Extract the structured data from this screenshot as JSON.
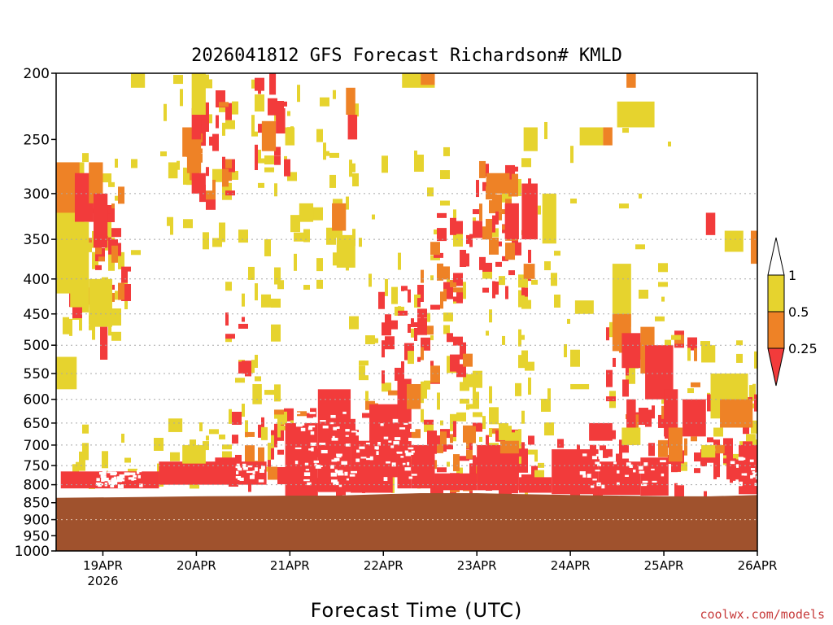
{
  "chart_data": {
    "type": "heatmap",
    "title": "2026041812 GFS Forecast Richardson# KMLD",
    "xlabel": "Forecast Time (UTC)",
    "ylabel": "",
    "credit": "coolwx.com/models",
    "y_scale": "log",
    "y_inverted": true,
    "ylim": [
      1000,
      200
    ],
    "xlim_days": [
      18.5,
      26.0
    ],
    "y_ticks": [
      200,
      250,
      300,
      350,
      400,
      450,
      500,
      550,
      600,
      650,
      700,
      750,
      800,
      850,
      900,
      950,
      1000
    ],
    "y_gridlines": [
      300,
      350,
      400,
      450,
      500,
      550,
      600,
      650,
      700,
      750,
      800,
      900
    ],
    "x_ticks": [
      {
        "day": 19,
        "label": "19APR",
        "sublabel": "2026"
      },
      {
        "day": 20,
        "label": "20APR",
        "sublabel": ""
      },
      {
        "day": 21,
        "label": "21APR",
        "sublabel": ""
      },
      {
        "day": 22,
        "label": "22APR",
        "sublabel": ""
      },
      {
        "day": 23,
        "label": "23APR",
        "sublabel": ""
      },
      {
        "day": 24,
        "label": "24APR",
        "sublabel": ""
      },
      {
        "day": 25,
        "label": "25APR",
        "sublabel": ""
      },
      {
        "day": 26,
        "label": "26APR",
        "sublabel": ""
      }
    ],
    "legend": {
      "placement": "right",
      "labels": [
        "1",
        "0.5",
        "0.25"
      ],
      "bins": [
        {
          "range": "0.5-1",
          "color": "#e6d32e"
        },
        {
          "range": "0.25-0.5",
          "color": "#ee8226"
        },
        {
          "range": "<0.25",
          "color": "#f23b3b"
        }
      ]
    },
    "ground_color": "#a0522d",
    "surface_pressure_hPa": [
      {
        "day": 18.5,
        "p": 836
      },
      {
        "day": 19.4,
        "p": 834
      },
      {
        "day": 20.0,
        "p": 832
      },
      {
        "day": 20.5,
        "p": 831
      },
      {
        "day": 21.0,
        "p": 830
      },
      {
        "day": 21.5,
        "p": 830
      },
      {
        "day": 22.0,
        "p": 826
      },
      {
        "day": 22.4,
        "p": 823
      },
      {
        "day": 23.0,
        "p": 823
      },
      {
        "day": 23.5,
        "p": 826
      },
      {
        "day": 24.0,
        "p": 828
      },
      {
        "day": 24.5,
        "p": 830
      },
      {
        "day": 25.0,
        "p": 832
      },
      {
        "day": 25.5,
        "p": 832
      },
      {
        "day": 26.0,
        "p": 828
      }
    ],
    "regions": [
      {
        "bin": "0.5-1",
        "day0": 18.5,
        "day1": 18.8,
        "p0": 270,
        "p1": 420
      },
      {
        "bin": "0.25-0.5",
        "day0": 18.5,
        "day1": 18.75,
        "p0": 270,
        "p1": 320
      },
      {
        "bin": "<0.25",
        "day0": 18.7,
        "day1": 18.9,
        "p0": 280,
        "p1": 330
      },
      {
        "bin": "0.25-0.5",
        "day0": 18.85,
        "day1": 19.0,
        "p0": 270,
        "p1": 310
      },
      {
        "bin": "<0.25",
        "day0": 18.9,
        "day1": 19.05,
        "p0": 300,
        "p1": 360
      },
      {
        "bin": "0.5-1",
        "day0": 18.65,
        "day1": 18.85,
        "p0": 330,
        "p1": 440
      },
      {
        "bin": "0.5-1",
        "day0": 18.85,
        "day1": 19.1,
        "p0": 400,
        "p1": 470
      },
      {
        "bin": "<0.25",
        "day0": 18.97,
        "day1": 19.05,
        "p0": 470,
        "p1": 525
      },
      {
        "bin": "0.5-1",
        "day0": 18.5,
        "day1": 18.72,
        "p0": 520,
        "p1": 580
      },
      {
        "bin": "0.5-1",
        "day0": 19.3,
        "day1": 19.45,
        "p0": 200,
        "p1": 210
      },
      {
        "bin": "0.5-1",
        "day0": 19.7,
        "day1": 19.8,
        "p0": 270,
        "p1": 285
      },
      {
        "bin": "0.25-0.5",
        "day0": 19.85,
        "day1": 20.0,
        "p0": 240,
        "p1": 265
      },
      {
        "bin": "<0.25",
        "day0": 19.95,
        "day1": 20.05,
        "p0": 225,
        "p1": 250
      },
      {
        "bin": "0.5-1",
        "day0": 19.95,
        "day1": 20.1,
        "p0": 200,
        "p1": 230
      },
      {
        "bin": "0.25-0.5",
        "day0": 19.9,
        "day1": 20.05,
        "p0": 250,
        "p1": 280
      },
      {
        "bin": "<0.25",
        "day0": 19.95,
        "day1": 20.1,
        "p0": 280,
        "p1": 300
      },
      {
        "bin": "0.25-0.5",
        "day0": 20.7,
        "day1": 20.85,
        "p0": 235,
        "p1": 260
      },
      {
        "bin": "<0.25",
        "day0": 20.78,
        "day1": 20.85,
        "p0": 200,
        "p1": 215
      },
      {
        "bin": "<0.25",
        "day0": 20.85,
        "day1": 20.95,
        "p0": 225,
        "p1": 245
      },
      {
        "bin": "0.5-1",
        "day0": 20.95,
        "day1": 21.05,
        "p0": 240,
        "p1": 255
      },
      {
        "bin": "0.5-1",
        "day0": 21.1,
        "day1": 21.25,
        "p0": 310,
        "p1": 330
      },
      {
        "bin": "0.25-0.5",
        "day0": 21.45,
        "day1": 21.6,
        "p0": 310,
        "p1": 340
      },
      {
        "bin": "0.5-1",
        "day0": 21.5,
        "day1": 21.7,
        "p0": 345,
        "p1": 385
      },
      {
        "bin": "0.25-0.5",
        "day0": 21.6,
        "day1": 21.7,
        "p0": 210,
        "p1": 230
      },
      {
        "bin": "<0.25",
        "day0": 21.62,
        "day1": 21.72,
        "p0": 230,
        "p1": 250
      },
      {
        "bin": "0.5-1",
        "day0": 22.2,
        "day1": 22.55,
        "p0": 200,
        "p1": 210
      },
      {
        "bin": "0.25-0.5",
        "day0": 22.4,
        "day1": 22.55,
        "p0": 200,
        "p1": 208
      },
      {
        "bin": "0.25-0.5",
        "day0": 23.1,
        "day1": 23.35,
        "p0": 280,
        "p1": 300
      },
      {
        "bin": "<0.25",
        "day0": 23.3,
        "day1": 23.45,
        "p0": 310,
        "p1": 350
      },
      {
        "bin": "<0.25",
        "day0": 23.48,
        "day1": 23.65,
        "p0": 290,
        "p1": 350
      },
      {
        "bin": "0.5-1",
        "day0": 23.5,
        "day1": 23.65,
        "p0": 240,
        "p1": 260
      },
      {
        "bin": "0.25-0.5",
        "day0": 23.5,
        "day1": 23.62,
        "p0": 380,
        "p1": 400
      },
      {
        "bin": "0.5-1",
        "day0": 23.7,
        "day1": 23.85,
        "p0": 300,
        "p1": 355
      },
      {
        "bin": "0.5-1",
        "day0": 24.1,
        "day1": 24.35,
        "p0": 240,
        "p1": 255
      },
      {
        "bin": "0.25-0.5",
        "day0": 24.35,
        "day1": 24.45,
        "p0": 240,
        "p1": 255
      },
      {
        "bin": "0.5-1",
        "day0": 24.5,
        "day1": 24.9,
        "p0": 220,
        "p1": 240
      },
      {
        "bin": "0.25-0.5",
        "day0": 24.6,
        "day1": 24.7,
        "p0": 200,
        "p1": 210
      },
      {
        "bin": "0.5-1",
        "day0": 24.45,
        "day1": 24.65,
        "p0": 380,
        "p1": 470
      },
      {
        "bin": "0.25-0.5",
        "day0": 24.45,
        "day1": 24.65,
        "p0": 450,
        "p1": 510
      },
      {
        "bin": "<0.25",
        "day0": 24.55,
        "day1": 24.75,
        "p0": 480,
        "p1": 540
      },
      {
        "bin": "<0.25",
        "day0": 24.6,
        "day1": 24.7,
        "p0": 600,
        "p1": 700
      },
      {
        "bin": "0.25-0.5",
        "day0": 24.75,
        "day1": 24.9,
        "p0": 470,
        "p1": 550
      },
      {
        "bin": "<0.25",
        "day0": 24.8,
        "day1": 25.1,
        "p0": 500,
        "p1": 600
      },
      {
        "bin": "<0.25",
        "day0": 25.0,
        "day1": 25.15,
        "p0": 580,
        "p1": 680
      },
      {
        "bin": "0.25-0.5",
        "day0": 25.05,
        "day1": 25.2,
        "p0": 660,
        "p1": 740
      },
      {
        "bin": "<0.25",
        "day0": 25.2,
        "day1": 25.45,
        "p0": 600,
        "p1": 680
      },
      {
        "bin": "0.5-1",
        "day0": 25.4,
        "day1": 25.55,
        "p0": 500,
        "p1": 530
      },
      {
        "bin": "0.5-1",
        "day0": 25.5,
        "day1": 25.9,
        "p0": 550,
        "p1": 640
      },
      {
        "bin": "0.25-0.5",
        "day0": 25.6,
        "day1": 25.95,
        "p0": 600,
        "p1": 660
      },
      {
        "bin": "<0.25",
        "day0": 25.45,
        "day1": 25.55,
        "p0": 320,
        "p1": 345
      },
      {
        "bin": "0.5-1",
        "day0": 25.65,
        "day1": 25.85,
        "p0": 340,
        "p1": 365
      },
      {
        "bin": "0.25-0.5",
        "day0": 25.93,
        "day1": 26.0,
        "p0": 340,
        "p1": 380
      },
      {
        "bin": "<0.25",
        "day0": 24.2,
        "day1": 24.45,
        "p0": 650,
        "p1": 690
      },
      {
        "bin": "0.5-1",
        "day0": 24.0,
        "day1": 24.2,
        "p0": 570,
        "p1": 580
      },
      {
        "bin": "0.5-1",
        "day0": 24.05,
        "day1": 24.25,
        "p0": 430,
        "p1": 450
      },
      {
        "bin": "<0.25",
        "day0": 18.55,
        "day1": 19.6,
        "p0": 765,
        "p1": 810
      },
      {
        "bin": "0.5-1",
        "day0": 19.7,
        "day1": 19.85,
        "p0": 640,
        "p1": 670
      },
      {
        "bin": "<0.25",
        "day0": 19.6,
        "day1": 20.75,
        "p0": 740,
        "p1": 800
      },
      {
        "bin": "0.5-1",
        "day0": 19.85,
        "day1": 20.1,
        "p0": 700,
        "p1": 745
      },
      {
        "bin": "<0.25",
        "day0": 20.2,
        "day1": 20.45,
        "p0": 730,
        "p1": 760
      },
      {
        "bin": "0.5-1",
        "day0": 20.6,
        "day1": 20.7,
        "p0": 570,
        "p1": 610
      },
      {
        "bin": "<0.25",
        "day0": 20.95,
        "day1": 21.3,
        "p0": 650,
        "p1": 830
      },
      {
        "bin": "<0.25",
        "day0": 21.3,
        "day1": 21.65,
        "p0": 580,
        "p1": 820
      },
      {
        "bin": "<0.25",
        "day0": 21.65,
        "day1": 22.1,
        "p0": 690,
        "p1": 822
      },
      {
        "bin": "<0.25",
        "day0": 21.85,
        "day1": 22.15,
        "p0": 610,
        "p1": 780
      },
      {
        "bin": "<0.25",
        "day0": 22.15,
        "day1": 22.3,
        "p0": 560,
        "p1": 810
      },
      {
        "bin": "0.25-0.5",
        "day0": 22.25,
        "day1": 22.4,
        "p0": 570,
        "p1": 620
      },
      {
        "bin": "<0.25",
        "day0": 22.3,
        "day1": 22.55,
        "p0": 700,
        "p1": 810
      },
      {
        "bin": "<0.25",
        "day0": 22.55,
        "day1": 23.0,
        "p0": 770,
        "p1": 815
      },
      {
        "bin": "<0.25",
        "day0": 23.0,
        "day1": 23.45,
        "p0": 700,
        "p1": 815
      },
      {
        "bin": "0.25-0.5",
        "day0": 23.25,
        "day1": 23.45,
        "p0": 690,
        "p1": 720
      },
      {
        "bin": "<0.25",
        "day0": 23.45,
        "day1": 23.8,
        "p0": 780,
        "p1": 822
      },
      {
        "bin": "<0.25",
        "day0": 23.8,
        "day1": 24.3,
        "p0": 710,
        "p1": 826
      },
      {
        "bin": "<0.25",
        "day0": 24.3,
        "day1": 24.75,
        "p0": 740,
        "p1": 828
      },
      {
        "bin": "<0.25",
        "day0": 24.75,
        "day1": 25.05,
        "p0": 730,
        "p1": 830
      },
      {
        "bin": "0.5-1",
        "day0": 24.55,
        "day1": 24.75,
        "p0": 660,
        "p1": 700
      },
      {
        "bin": "<0.25",
        "day0": 25.8,
        "day1": 26.0,
        "p0": 700,
        "p1": 826
      },
      {
        "bin": "0.5-1",
        "day0": 25.4,
        "day1": 25.55,
        "p0": 700,
        "p1": 730
      },
      {
        "bin": "0.25-0.5",
        "day0": 25.55,
        "day1": 25.65,
        "p0": 700,
        "p1": 720
      }
    ],
    "noise_clusters": [
      {
        "bin": "0.5-1",
        "day0": 18.5,
        "day1": 19.3,
        "p0": 260,
        "p1": 480,
        "n": 60
      },
      {
        "bin": "<0.25",
        "day0": 18.6,
        "day1": 19.2,
        "p0": 280,
        "p1": 440,
        "n": 30
      },
      {
        "bin": "0.25-0.5",
        "day0": 18.6,
        "day1": 19.2,
        "p0": 280,
        "p1": 440,
        "n": 18
      },
      {
        "bin": "0.5-1",
        "day0": 19.6,
        "day1": 20.4,
        "p0": 200,
        "p1": 360,
        "n": 28
      },
      {
        "bin": "<0.25",
        "day0": 19.9,
        "day1": 20.3,
        "p0": 210,
        "p1": 300,
        "n": 18
      },
      {
        "bin": "0.25-0.5",
        "day0": 19.85,
        "day1": 20.3,
        "p0": 210,
        "p1": 300,
        "n": 14
      },
      {
        "bin": "0.5-1",
        "day0": 20.3,
        "day1": 20.9,
        "p0": 330,
        "p1": 660,
        "n": 22
      },
      {
        "bin": "<0.25",
        "day0": 20.3,
        "day1": 20.6,
        "p0": 440,
        "p1": 560,
        "n": 8
      },
      {
        "bin": "0.5-1",
        "day0": 20.5,
        "day1": 21.0,
        "p0": 200,
        "p1": 300,
        "n": 16
      },
      {
        "bin": "<0.25",
        "day0": 20.6,
        "day1": 20.95,
        "p0": 200,
        "p1": 270,
        "n": 12
      },
      {
        "bin": "0.5-1",
        "day0": 21.0,
        "day1": 21.7,
        "p0": 200,
        "p1": 420,
        "n": 26
      },
      {
        "bin": "0.5-1",
        "day0": 21.55,
        "day1": 22.2,
        "p0": 230,
        "p1": 640,
        "n": 22
      },
      {
        "bin": "<0.25",
        "day0": 21.9,
        "day1": 22.4,
        "p0": 390,
        "p1": 620,
        "n": 26
      },
      {
        "bin": "0.5-1",
        "day0": 22.2,
        "day1": 22.85,
        "p0": 250,
        "p1": 660,
        "n": 36
      },
      {
        "bin": "<0.25",
        "day0": 22.3,
        "day1": 22.85,
        "p0": 320,
        "p1": 560,
        "n": 26
      },
      {
        "bin": "0.25-0.5",
        "day0": 22.3,
        "day1": 22.85,
        "p0": 320,
        "p1": 560,
        "n": 14
      },
      {
        "bin": "0.5-1",
        "day0": 22.85,
        "day1": 23.5,
        "p0": 280,
        "p1": 720,
        "n": 36
      },
      {
        "bin": "<0.25",
        "day0": 22.85,
        "day1": 23.55,
        "p0": 270,
        "p1": 420,
        "n": 36
      },
      {
        "bin": "0.25-0.5",
        "day0": 23.0,
        "day1": 23.5,
        "p0": 260,
        "p1": 360,
        "n": 18
      },
      {
        "bin": "0.5-1",
        "day0": 23.4,
        "day1": 24.0,
        "p0": 220,
        "p1": 600,
        "n": 22
      },
      {
        "bin": "0.5-1",
        "day0": 24.3,
        "day1": 25.1,
        "p0": 200,
        "p1": 640,
        "n": 22
      },
      {
        "bin": "<0.25",
        "day0": 24.3,
        "day1": 25.3,
        "p0": 470,
        "p1": 700,
        "n": 26
      },
      {
        "bin": "0.25-0.5",
        "day0": 24.5,
        "day1": 25.4,
        "p0": 470,
        "p1": 700,
        "n": 16
      },
      {
        "bin": "0.5-1",
        "day0": 25.0,
        "day1": 26.0,
        "p0": 480,
        "p1": 760,
        "n": 28
      },
      {
        "bin": "<0.25",
        "day0": 25.4,
        "day1": 26.0,
        "p0": 560,
        "p1": 780,
        "n": 16
      },
      {
        "bin": "0.5-1",
        "day0": 18.55,
        "day1": 20.3,
        "p0": 640,
        "p1": 790,
        "n": 30
      },
      {
        "bin": "<0.25",
        "day0": 20.3,
        "day1": 21.3,
        "p0": 600,
        "p1": 800,
        "n": 36
      },
      {
        "bin": "0.5-1",
        "day0": 20.5,
        "day1": 21.1,
        "p0": 600,
        "p1": 760,
        "n": 14
      },
      {
        "bin": "0.25-0.5",
        "day0": 20.5,
        "day1": 21.1,
        "p0": 600,
        "p1": 760,
        "n": 10
      },
      {
        "bin": "<0.25",
        "day0": 21.3,
        "day1": 22.0,
        "p0": 620,
        "p1": 800,
        "n": 40
      },
      {
        "bin": "0.25-0.5",
        "day0": 21.7,
        "day1": 22.3,
        "p0": 580,
        "p1": 760,
        "n": 22
      },
      {
        "bin": "0.5-1",
        "day0": 22.0,
        "day1": 22.8,
        "p0": 560,
        "p1": 790,
        "n": 18
      },
      {
        "bin": "<0.25",
        "day0": 22.4,
        "day1": 23.0,
        "p0": 640,
        "p1": 800,
        "n": 30
      },
      {
        "bin": "0.25-0.5",
        "day0": 22.5,
        "day1": 23.4,
        "p0": 650,
        "p1": 790,
        "n": 22
      },
      {
        "bin": "<0.25",
        "day0": 23.0,
        "day1": 23.6,
        "p0": 660,
        "p1": 800,
        "n": 30
      },
      {
        "bin": "0.5-1",
        "day0": 23.0,
        "day1": 23.7,
        "p0": 640,
        "p1": 790,
        "n": 16
      },
      {
        "bin": "<0.25",
        "day0": 23.8,
        "day1": 24.6,
        "p0": 680,
        "p1": 800,
        "n": 24
      },
      {
        "bin": "<0.25",
        "day0": 25.0,
        "day1": 26.0,
        "p0": 680,
        "p1": 820,
        "n": 26
      }
    ],
    "white_speckle": [
      {
        "day0": 18.9,
        "day1": 19.4,
        "p0": 760,
        "p1": 800,
        "n": 40
      },
      {
        "day0": 20.4,
        "day1": 20.7,
        "p0": 745,
        "p1": 790,
        "n": 20
      },
      {
        "day0": 21.05,
        "day1": 21.7,
        "p0": 620,
        "p1": 800,
        "n": 60
      },
      {
        "day0": 21.7,
        "day1": 22.3,
        "p0": 640,
        "p1": 780,
        "n": 40
      },
      {
        "day0": 24.1,
        "day1": 25.0,
        "p0": 720,
        "p1": 810,
        "n": 30
      },
      {
        "day0": 25.7,
        "day1": 26.0,
        "p0": 720,
        "p1": 800,
        "n": 18
      }
    ]
  }
}
